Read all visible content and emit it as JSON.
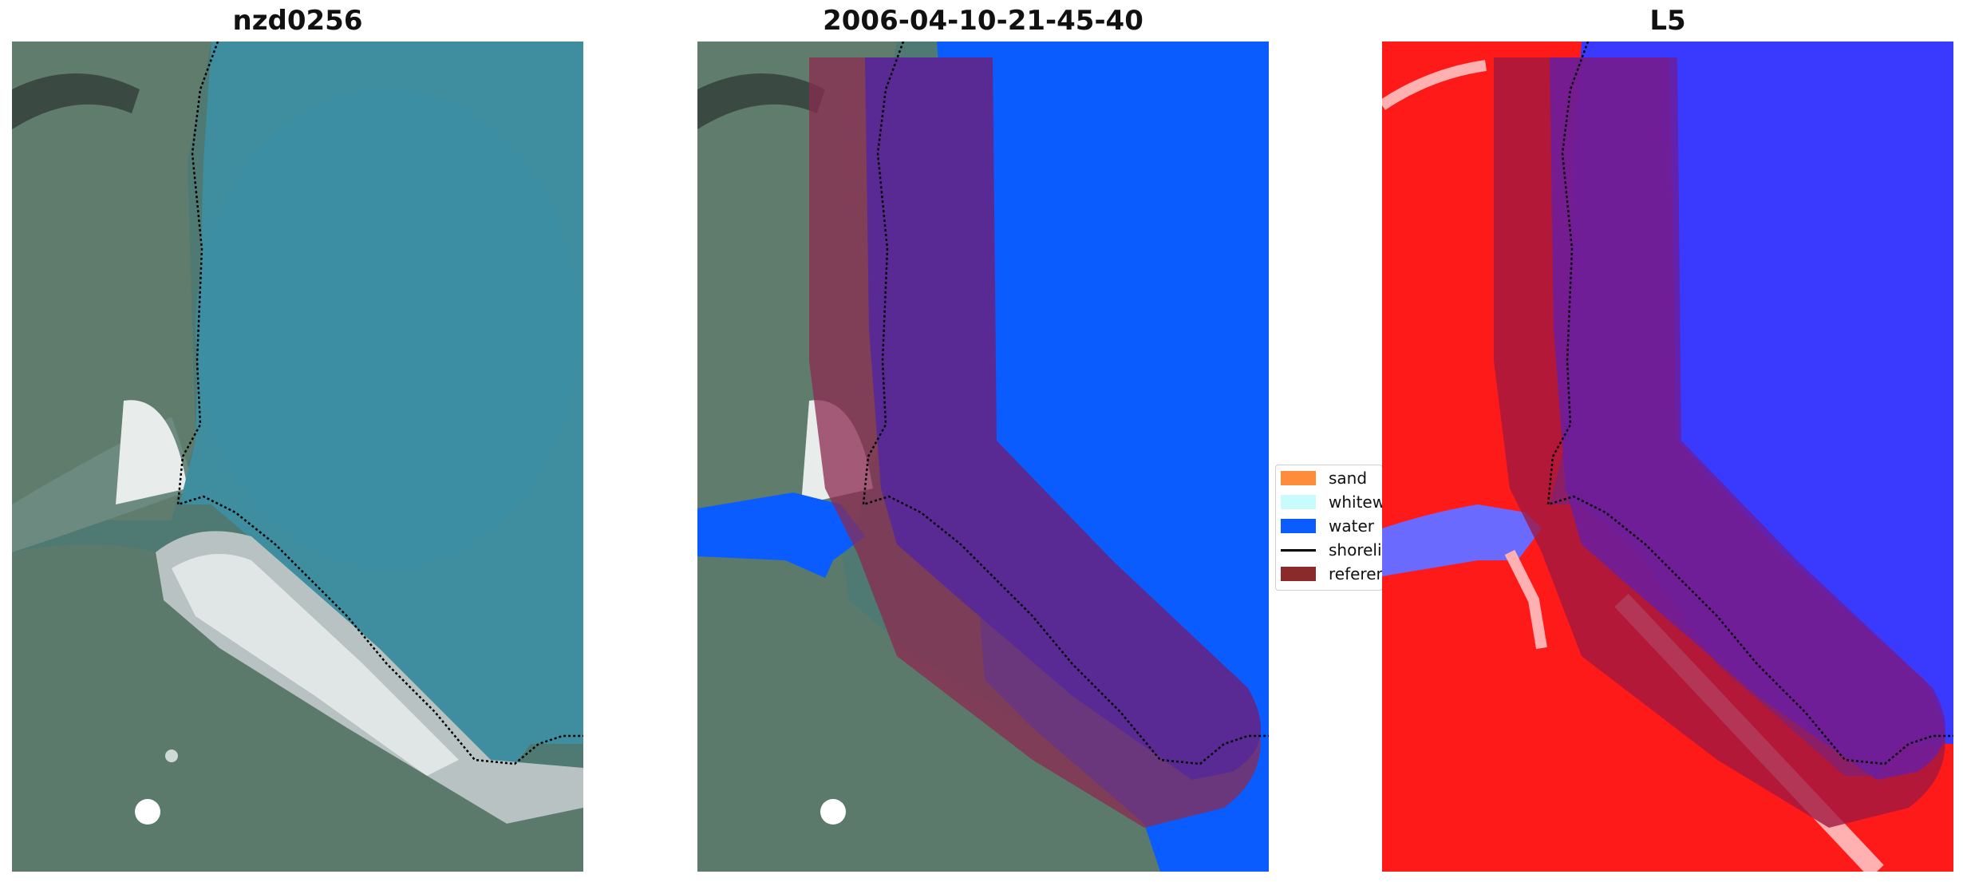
{
  "panels": [
    {
      "title": "nzd0256"
    },
    {
      "title": "2006-04-10-21-45-40"
    },
    {
      "title": "L5"
    }
  ],
  "legend": {
    "items": [
      {
        "label": "sand",
        "color": "#ff8c3a"
      },
      {
        "label": "whitewater",
        "color": "#c8fbfb"
      },
      {
        "label": "water",
        "color": "#0a5cff"
      },
      {
        "label": "shoreline",
        "color": "#000000"
      },
      {
        "label": "reference",
        "color": "#8b2a2a"
      }
    ]
  },
  "colors": {
    "water_rgb": "#3f8ea0",
    "land_rgb": "#5a7a6a",
    "mask_purple": "#5a2a94",
    "buffer_red": "#8b2a50",
    "index_red": "#ff1a1a",
    "index_blue": "#3a3aff"
  }
}
